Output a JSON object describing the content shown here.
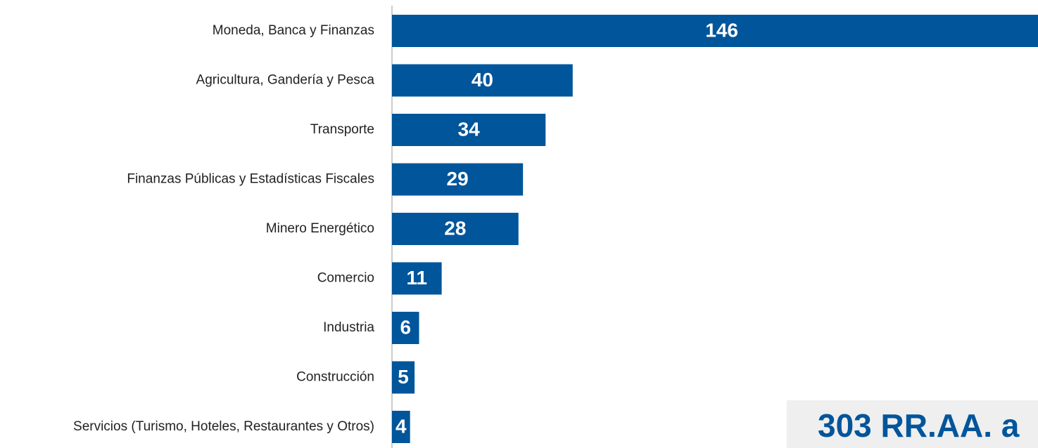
{
  "chart_data": {
    "type": "bar",
    "orientation": "horizontal",
    "categories": [
      "Moneda, Banca y Finanzas",
      "Agricultura, Gandería y Pesca",
      "Transporte",
      "Finanzas Públicas y Estadísticas Fiscales",
      "Minero Energético",
      "Comercio",
      "Industria",
      "Construcción",
      "Servicios (Turismo, Hoteles, Restaurantes y Otros)"
    ],
    "values": [
      146,
      40,
      34,
      29,
      28,
      11,
      6,
      5,
      4
    ],
    "color": "#00559b",
    "xlim": [
      0,
      143
    ],
    "annotation": "303 RR.AA. a"
  }
}
